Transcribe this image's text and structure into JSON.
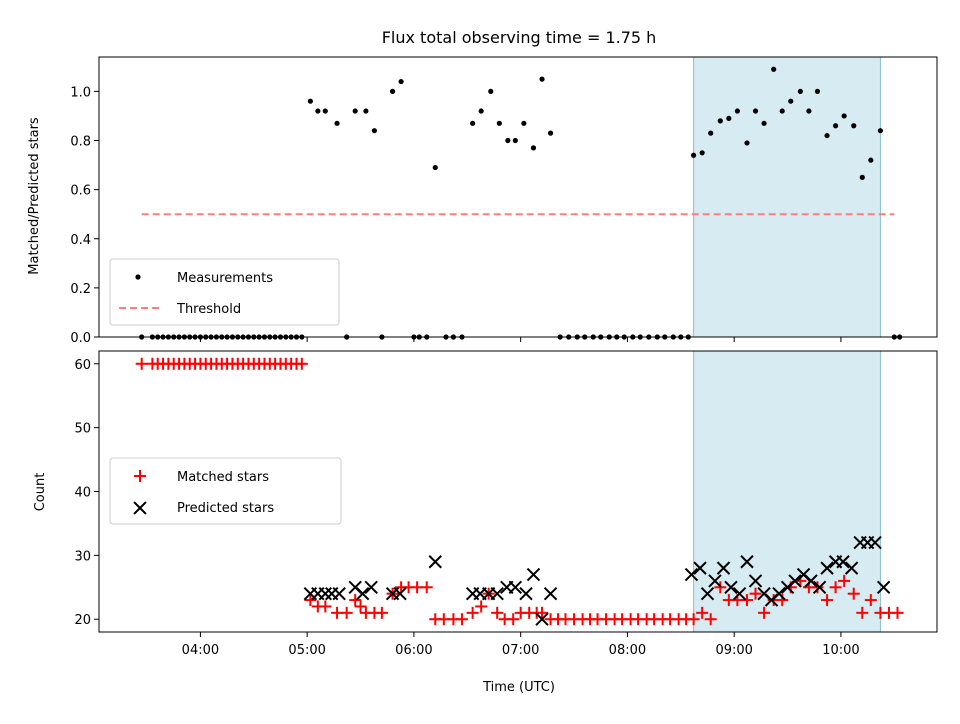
{
  "chart_data": {
    "type": "scatter",
    "title": "Flux total observing time = 1.75 h",
    "xlabel": "Time (UTC)",
    "x_ticks": [
      "04:00",
      "05:00",
      "06:00",
      "07:00",
      "08:00",
      "09:00",
      "10:00"
    ],
    "x_range_hours": [
      3.05,
      10.9
    ],
    "highlight_span_hours": [
      8.62,
      10.37
    ],
    "colors": {
      "highlight": "#add8e6",
      "threshold": "#ff7f7f",
      "matched": "#ff0000",
      "predicted": "#000000",
      "measurements": "#000000"
    },
    "panels": [
      {
        "ylabel": "Matched/Predicted stars",
        "ylim": [
          0,
          1.14
        ],
        "y_ticks": [
          "0.0",
          "0.2",
          "0.4",
          "0.6",
          "0.8",
          "1.0"
        ],
        "legend": [
          "Measurements",
          "Threshold"
        ],
        "threshold": {
          "value": 0.5,
          "x_range_hours": [
            3.45,
            10.5
          ]
        },
        "measurements": {
          "x": [
            3.45,
            3.55,
            3.6,
            3.65,
            3.7,
            3.75,
            3.8,
            3.85,
            3.9,
            3.95,
            4.0,
            4.05,
            4.1,
            4.15,
            4.2,
            4.25,
            4.3,
            4.35,
            4.4,
            4.45,
            4.5,
            4.55,
            4.6,
            4.65,
            4.7,
            4.75,
            4.8,
            4.85,
            4.9,
            4.95,
            5.03,
            5.1,
            5.17,
            5.28,
            5.37,
            5.45,
            5.55,
            5.63,
            5.7,
            5.8,
            5.88,
            6.0,
            6.05,
            6.12,
            6.2,
            6.3,
            6.37,
            6.45,
            6.55,
            6.63,
            6.72,
            6.8,
            6.88,
            6.95,
            7.03,
            7.12,
            7.2,
            7.28,
            7.37,
            7.45,
            7.53,
            7.6,
            7.68,
            7.75,
            7.83,
            7.9,
            7.97,
            8.05,
            8.12,
            8.2,
            8.28,
            8.35,
            8.43,
            8.5,
            8.57,
            8.62,
            8.7,
            8.78,
            8.87,
            8.95,
            9.03,
            9.12,
            9.2,
            9.28,
            9.37,
            9.45,
            9.53,
            9.62,
            9.7,
            9.78,
            9.87,
            9.95,
            10.03,
            10.12,
            10.2,
            10.28,
            10.37,
            10.5,
            10.55
          ],
          "y": [
            0,
            0,
            0,
            0,
            0,
            0,
            0,
            0,
            0,
            0,
            0,
            0,
            0,
            0,
            0,
            0,
            0,
            0,
            0,
            0,
            0,
            0,
            0,
            0,
            0,
            0,
            0,
            0,
            0,
            0,
            0.96,
            0.92,
            0.92,
            0.87,
            0,
            0.92,
            0.92,
            0.84,
            0,
            1.0,
            1.04,
            0,
            0,
            0,
            0.69,
            0,
            0,
            0,
            0.87,
            0.92,
            1.0,
            0.87,
            0.8,
            0.8,
            0.87,
            0.77,
            1.05,
            0.83,
            0,
            0,
            0,
            0,
            0,
            0,
            0,
            0,
            0,
            0,
            0,
            0,
            0,
            0,
            0,
            0,
            0,
            0.74,
            0.75,
            0.83,
            0.88,
            0.89,
            0.92,
            0.79,
            0.92,
            0.87,
            1.09,
            0.92,
            0.96,
            1.0,
            0.92,
            1.0,
            0.82,
            0.86,
            0.9,
            0.86,
            0.65,
            0.72,
            0.84,
            0,
            0
          ]
        }
      },
      {
        "ylabel": "Count",
        "ylim": [
          18,
          62
        ],
        "y_ticks": [
          "20",
          "30",
          "40",
          "50",
          "60"
        ],
        "legend": [
          "Matched stars",
          "Predicted stars"
        ],
        "matched": {
          "x": [
            3.45,
            3.55,
            3.6,
            3.65,
            3.7,
            3.75,
            3.8,
            3.85,
            3.9,
            3.95,
            4.0,
            4.05,
            4.1,
            4.15,
            4.2,
            4.25,
            4.3,
            4.35,
            4.4,
            4.45,
            4.5,
            4.55,
            4.6,
            4.65,
            4.7,
            4.75,
            4.8,
            4.85,
            4.9,
            4.95,
            5.03,
            5.1,
            5.17,
            5.28,
            5.37,
            5.45,
            5.5,
            5.55,
            5.63,
            5.7,
            5.8,
            5.88,
            5.95,
            6.03,
            6.12,
            6.2,
            6.28,
            6.37,
            6.45,
            6.55,
            6.63,
            6.7,
            6.78,
            6.85,
            6.93,
            7.0,
            7.08,
            7.15,
            7.2,
            7.28,
            7.35,
            7.42,
            7.5,
            7.58,
            7.65,
            7.72,
            7.8,
            7.88,
            7.95,
            8.03,
            8.1,
            8.18,
            8.25,
            8.33,
            8.4,
            8.48,
            8.55,
            8.62,
            8.7,
            8.78,
            8.87,
            8.95,
            9.03,
            9.12,
            9.2,
            9.28,
            9.37,
            9.45,
            9.53,
            9.62,
            9.7,
            9.78,
            9.87,
            9.95,
            10.03,
            10.12,
            10.2,
            10.28,
            10.37,
            10.45,
            10.53
          ],
          "y": [
            60,
            60,
            60,
            60,
            60,
            60,
            60,
            60,
            60,
            60,
            60,
            60,
            60,
            60,
            60,
            60,
            60,
            60,
            60,
            60,
            60,
            60,
            60,
            60,
            60,
            60,
            60,
            60,
            60,
            60,
            23,
            22,
            22,
            21,
            21,
            23,
            22,
            21,
            21,
            21,
            24,
            25,
            25,
            25,
            25,
            20,
            20,
            20,
            20,
            21,
            22,
            24,
            21,
            20,
            20,
            21,
            21,
            21,
            21,
            20,
            20,
            20,
            20,
            20,
            20,
            20,
            20,
            20,
            20,
            20,
            20,
            20,
            20,
            20,
            20,
            20,
            20,
            20,
            21,
            20,
            25,
            23,
            23,
            23,
            24,
            21,
            23,
            23,
            25,
            26,
            25,
            25,
            23,
            25,
            26,
            24,
            21,
            23,
            21,
            21,
            21
          ]
        },
        "predicted": {
          "x": [
            5.03,
            5.1,
            5.17,
            5.23,
            5.3,
            5.45,
            5.52,
            5.6,
            5.8,
            5.87,
            6.2,
            6.55,
            6.62,
            6.7,
            6.78,
            6.87,
            6.95,
            7.05,
            7.12,
            7.2,
            7.28,
            8.6,
            8.68,
            8.75,
            8.82,
            8.9,
            8.97,
            9.05,
            9.12,
            9.2,
            9.28,
            9.35,
            9.42,
            9.5,
            9.57,
            9.65,
            9.72,
            9.8,
            9.87,
            9.95,
            10.02,
            10.1,
            10.18,
            10.25,
            10.32,
            10.4
          ],
          "y": [
            24,
            24,
            24,
            24,
            24,
            25,
            24,
            25,
            24,
            24,
            29,
            24,
            24,
            24,
            24,
            25,
            25,
            24,
            27,
            20,
            24,
            27,
            28,
            24,
            26,
            28,
            25,
            24,
            29,
            26,
            24,
            23,
            24,
            25,
            26,
            27,
            26,
            25,
            28,
            29,
            29,
            28,
            32,
            32,
            32,
            25
          ]
        }
      }
    ]
  }
}
